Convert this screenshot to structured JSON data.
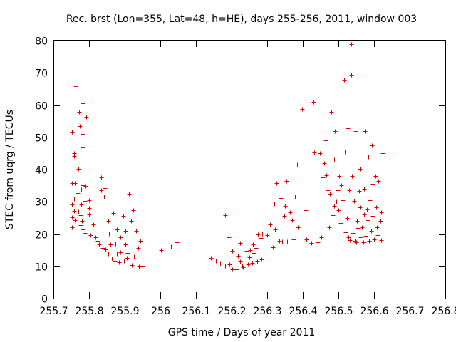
{
  "chart_data": {
    "type": "scatter",
    "title": "Rec. brst (Lon=355, Lat=48, h=HE), days 255-256, 2011, window 003",
    "xlabel": "GPS time / Days of year 2011",
    "ylabel": "STEC from uqrg / TECUs",
    "xlim": [
      255.7,
      256.8
    ],
    "ylim": [
      0,
      80
    ],
    "grid": false,
    "xticks": [
      255.7,
      255.8,
      255.9,
      256.0,
      256.1,
      256.2,
      256.3,
      256.4,
      256.5,
      256.6,
      256.7,
      256.8
    ],
    "xtick_labels": [
      "255.7",
      "255.8",
      "255.9",
      "256",
      "256.1",
      "256.2",
      "256.3",
      "256.4",
      "256.5",
      "256.6",
      "256.7",
      "256.8"
    ],
    "yticks": [
      0,
      10,
      20,
      30,
      40,
      50,
      60,
      70,
      80
    ],
    "ytick_labels": [
      "0",
      "10",
      "20",
      "30",
      "40",
      "50",
      "60",
      "70",
      "80"
    ],
    "marker": "+",
    "color": "#d40000",
    "series": [
      {
        "name": "STEC",
        "points": [
          [
            255.751,
            51.7
          ],
          [
            255.752,
            35.9
          ],
          [
            255.751,
            29.1
          ],
          [
            255.751,
            25.3
          ],
          [
            255.751,
            22.0
          ],
          [
            255.758,
            44.3
          ],
          [
            255.758,
            45.0
          ],
          [
            255.76,
            35.8
          ],
          [
            255.759,
            30.9
          ],
          [
            255.758,
            27.2
          ],
          [
            255.76,
            24.4
          ],
          [
            255.761,
            65.9
          ],
          [
            255.768,
            32.8
          ],
          [
            255.77,
            26.9
          ],
          [
            255.768,
            23.8
          ],
          [
            255.771,
            40.3
          ],
          [
            255.772,
            57.9
          ],
          [
            255.773,
            53.5
          ],
          [
            255.778,
            33.9
          ],
          [
            255.778,
            29.1
          ],
          [
            255.775,
            25.8
          ],
          [
            255.776,
            22.7
          ],
          [
            255.782,
            60.6
          ],
          [
            255.783,
            51.1
          ],
          [
            255.781,
            46.8
          ],
          [
            255.782,
            35.1
          ],
          [
            255.78,
            24.0
          ],
          [
            255.781,
            21.5
          ],
          [
            255.791,
            56.3
          ],
          [
            255.79,
            34.9
          ],
          [
            255.788,
            30.2
          ],
          [
            255.789,
            20.3
          ],
          [
            255.8,
            30.5
          ],
          [
            255.801,
            28.1
          ],
          [
            255.8,
            26.1
          ],
          [
            255.804,
            19.7
          ],
          [
            255.812,
            23.0
          ],
          [
            255.818,
            18.9
          ],
          [
            255.823,
            17.8
          ],
          [
            255.828,
            16.7
          ],
          [
            255.833,
            37.6
          ],
          [
            255.834,
            33.7
          ],
          [
            255.838,
            15.7
          ],
          [
            255.843,
            31.6
          ],
          [
            255.844,
            34.2
          ],
          [
            255.846,
            15.2
          ],
          [
            255.853,
            14.0
          ],
          [
            255.855,
            24.0
          ],
          [
            255.856,
            20.2
          ],
          [
            255.861,
            16.8
          ],
          [
            255.863,
            12.3
          ],
          [
            255.866,
            19.3
          ],
          [
            255.868,
            26.6
          ],
          [
            255.872,
            11.5
          ],
          [
            255.874,
            17.1
          ],
          [
            255.877,
            13.9
          ],
          [
            255.879,
            21.5
          ],
          [
            255.883,
            11.2
          ],
          [
            255.887,
            18.9
          ],
          [
            255.888,
            14.4
          ],
          [
            255.893,
            10.8
          ],
          [
            255.896,
            25.6
          ],
          [
            255.898,
            11.8
          ],
          [
            255.901,
            16.7
          ],
          [
            255.902,
            21.1
          ],
          [
            255.905,
            12.5
          ],
          [
            255.909,
            14.2
          ],
          [
            255.912,
            32.5
          ],
          [
            255.918,
            24.0
          ],
          [
            255.92,
            10.3
          ],
          [
            255.923,
            27.3
          ],
          [
            255.926,
            13.1
          ],
          [
            255.928,
            14.0
          ],
          [
            255.933,
            20.9
          ],
          [
            255.937,
            15.6
          ],
          [
            255.94,
            10.0
          ],
          [
            255.945,
            17.9
          ],
          [
            255.95,
            9.9
          ],
          [
            256.003,
            15.1
          ],
          [
            256.017,
            15.5
          ],
          [
            256.029,
            16.2
          ],
          [
            256.046,
            17.5
          ],
          [
            256.068,
            20.1
          ],
          [
            256.142,
            12.5
          ],
          [
            256.157,
            11.7
          ],
          [
            256.168,
            10.8
          ],
          [
            256.183,
            10.2
          ],
          [
            256.183,
            25.8
          ],
          [
            256.193,
            19.0
          ],
          [
            256.194,
            10.6
          ],
          [
            256.201,
            14.9
          ],
          [
            256.203,
            9.0
          ],
          [
            256.213,
            9.1
          ],
          [
            256.218,
            13.2
          ],
          [
            256.223,
            11.6
          ],
          [
            256.224,
            17.2
          ],
          [
            256.231,
            10.2
          ],
          [
            256.232,
            9.8
          ],
          [
            256.243,
            14.8
          ],
          [
            256.246,
            10.5
          ],
          [
            256.25,
            12.9
          ],
          [
            256.252,
            15.0
          ],
          [
            256.258,
            11.0
          ],
          [
            256.26,
            16.9
          ],
          [
            256.263,
            14.1
          ],
          [
            256.268,
            15.7
          ],
          [
            256.271,
            11.5
          ],
          [
            256.273,
            19.9
          ],
          [
            256.281,
            18.7
          ],
          [
            256.283,
            12.2
          ],
          [
            256.286,
            20.2
          ],
          [
            256.296,
            14.5
          ],
          [
            256.301,
            19.6
          ],
          [
            256.307,
            23.0
          ],
          [
            256.316,
            16.0
          ],
          [
            256.319,
            29.3
          ],
          [
            256.323,
            21.5
          ],
          [
            256.326,
            35.9
          ],
          [
            256.333,
            18.0
          ],
          [
            256.339,
            31.2
          ],
          [
            256.341,
            17.6
          ],
          [
            256.348,
            25.7
          ],
          [
            256.351,
            28.8
          ],
          [
            256.353,
            36.5
          ],
          [
            256.356,
            17.6
          ],
          [
            256.364,
            26.7
          ],
          [
            256.369,
            24.2
          ],
          [
            256.374,
            18.3
          ],
          [
            256.377,
            31.5
          ],
          [
            256.385,
            41.6
          ],
          [
            256.386,
            22.2
          ],
          [
            256.394,
            20.7
          ],
          [
            256.398,
            58.8
          ],
          [
            256.401,
            17.6
          ],
          [
            256.409,
            27.3
          ],
          [
            256.411,
            18.4
          ],
          [
            256.423,
            34.8
          ],
          [
            256.424,
            17.2
          ],
          [
            256.431,
            60.9
          ],
          [
            256.433,
            45.4
          ],
          [
            256.442,
            17.5
          ],
          [
            256.448,
            45.0
          ],
          [
            256.453,
            19.0
          ],
          [
            256.457,
            37.5
          ],
          [
            256.46,
            42.0
          ],
          [
            256.465,
            49.0
          ],
          [
            256.467,
            38.2
          ],
          [
            256.47,
            33.5
          ],
          [
            256.473,
            22.0
          ],
          [
            256.477,
            32.5
          ],
          [
            256.481,
            57.9
          ],
          [
            256.484,
            25.9
          ],
          [
            256.487,
            43.0
          ],
          [
            256.489,
            28.7
          ],
          [
            256.491,
            52.0
          ],
          [
            256.494,
            30.0
          ],
          [
            256.497,
            33.5
          ],
          [
            256.499,
            27.3
          ],
          [
            256.503,
            38.0
          ],
          [
            256.506,
            23.4
          ],
          [
            256.508,
            35.1
          ],
          [
            256.511,
            43.0
          ],
          [
            256.513,
            30.4
          ],
          [
            256.516,
            67.8
          ],
          [
            256.518,
            45.5
          ],
          [
            256.52,
            20.6
          ],
          [
            256.523,
            24.9
          ],
          [
            256.526,
            52.9
          ],
          [
            256.528,
            19.0
          ],
          [
            256.53,
            33.7
          ],
          [
            256.532,
            18.2
          ],
          [
            256.535,
            79.0
          ],
          [
            256.537,
            69.5
          ],
          [
            256.539,
            38.1
          ],
          [
            256.541,
            20.3
          ],
          [
            256.543,
            30.3
          ],
          [
            256.545,
            17.8
          ],
          [
            256.548,
            51.9
          ],
          [
            256.55,
            17.4
          ],
          [
            256.552,
            24.1
          ],
          [
            256.554,
            21.9
          ],
          [
            256.557,
            33.3
          ],
          [
            256.559,
            28.3
          ],
          [
            256.561,
            40.2
          ],
          [
            256.563,
            18.9
          ],
          [
            256.566,
            22.0
          ],
          [
            256.569,
            17.5
          ],
          [
            256.571,
            26.0
          ],
          [
            256.573,
            34.1
          ],
          [
            256.575,
            52.0
          ],
          [
            256.577,
            19.4
          ],
          [
            256.579,
            27.7
          ],
          [
            256.582,
            24.4
          ],
          [
            256.584,
            43.9
          ],
          [
            256.586,
            17.8
          ],
          [
            256.589,
            30.4
          ],
          [
            256.591,
            21.0
          ],
          [
            256.593,
            47.6
          ],
          [
            256.595,
            35.6
          ],
          [
            256.597,
            25.6
          ],
          [
            256.6,
            18.4
          ],
          [
            256.602,
            30.0
          ],
          [
            256.604,
            38.0
          ],
          [
            256.606,
            28.3
          ],
          [
            256.608,
            22.1
          ],
          [
            256.61,
            19.6
          ],
          [
            256.613,
            36.4
          ],
          [
            256.615,
            32.2
          ],
          [
            256.617,
            24.0
          ],
          [
            256.619,
            18.2
          ],
          [
            256.621,
            26.7
          ],
          [
            256.624,
            45.1
          ]
        ]
      }
    ]
  }
}
